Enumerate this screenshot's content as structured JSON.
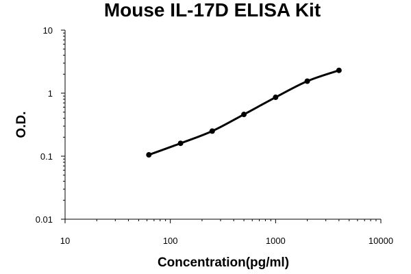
{
  "chart_data": {
    "type": "scatter",
    "title": "Mouse IL-17D ELISA Kit",
    "xlabel": "Concentration(pg/ml)",
    "ylabel": "O.D.",
    "x_scale": "log",
    "y_scale": "log",
    "xlim": [
      10,
      10000
    ],
    "ylim": [
      0.01,
      10
    ],
    "x_ticks": [
      "10",
      "100",
      "1000",
      "10000"
    ],
    "y_ticks": [
      "0.01",
      "0.1",
      "1",
      "10"
    ],
    "grid": false,
    "legend": "none",
    "series": [
      {
        "x": [
          62.5,
          125,
          250,
          500,
          1000,
          2000,
          4000
        ],
        "y": [
          0.105,
          0.16,
          0.25,
          0.46,
          0.86,
          1.55,
          2.3
        ],
        "fit_curve": true
      }
    ],
    "colors": {
      "line": "#000000",
      "marker": "#000000",
      "axis": "#000000"
    }
  }
}
